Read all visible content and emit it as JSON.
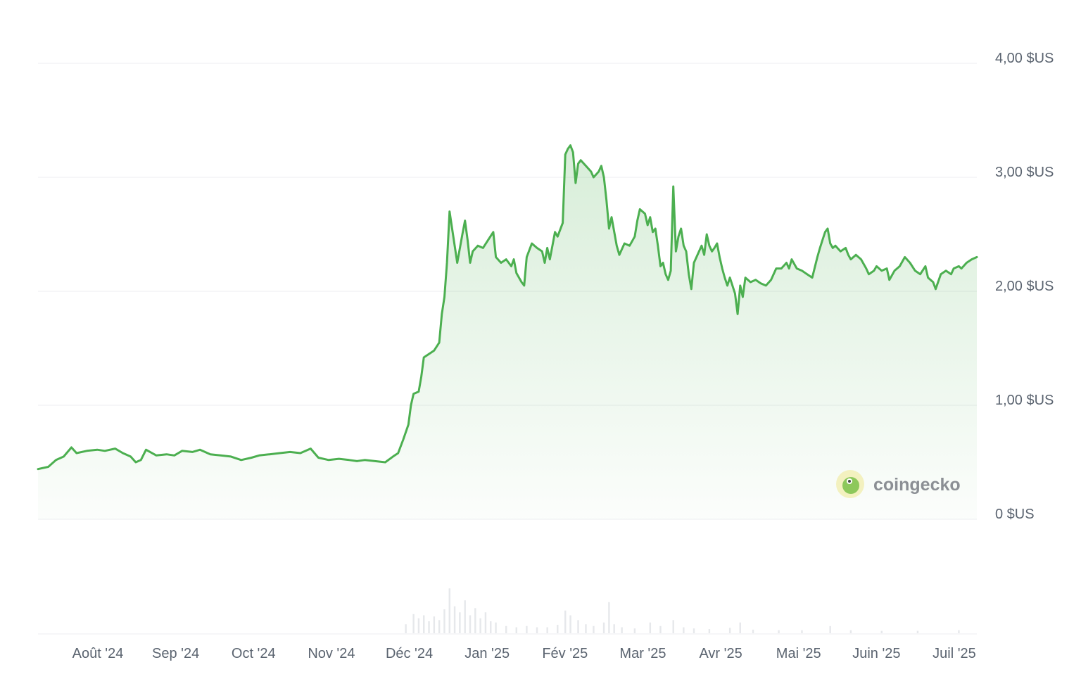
{
  "chart_data": {
    "type": "area",
    "title": "",
    "xlabel": "",
    "ylabel": "",
    "x_ticks": [
      "Août '24",
      "Sep '24",
      "Oct '24",
      "Nov '24",
      "Déc '24",
      "Jan '25",
      "Fév '25",
      "Mar '25",
      "Avr '25",
      "Mai '25",
      "Juin '25",
      "Juil '25"
    ],
    "y_ticks": [
      {
        "value": 4,
        "label": "4,00 $US"
      },
      {
        "value": 3,
        "label": "3,00 $US"
      },
      {
        "value": 2,
        "label": "2,00 $US"
      },
      {
        "value": 1,
        "label": "1,00 $US"
      },
      {
        "value": 0,
        "label": "0 $US"
      }
    ],
    "ylim": [
      0,
      4
    ],
    "xlim": [
      "2024-07-08",
      "2025-07-08"
    ],
    "grid": true,
    "line_color": "#4caf50",
    "fill_color": "#4caf50",
    "series": [
      {
        "values": [
          [
            "2024-07-08",
            0.44
          ],
          [
            "2024-07-12",
            0.46
          ],
          [
            "2024-07-15",
            0.52
          ],
          [
            "2024-07-18",
            0.55
          ],
          [
            "2024-07-21",
            0.63
          ],
          [
            "2024-07-23",
            0.58
          ],
          [
            "2024-07-27",
            0.6
          ],
          [
            "2024-07-31",
            0.61
          ],
          [
            "2024-08-03",
            0.6
          ],
          [
            "2024-08-07",
            0.62
          ],
          [
            "2024-08-10",
            0.58
          ],
          [
            "2024-08-13",
            0.55
          ],
          [
            "2024-08-15",
            0.5
          ],
          [
            "2024-08-17",
            0.52
          ],
          [
            "2024-08-19",
            0.61
          ],
          [
            "2024-08-23",
            0.56
          ],
          [
            "2024-08-27",
            0.57
          ],
          [
            "2024-08-30",
            0.56
          ],
          [
            "2024-09-02",
            0.6
          ],
          [
            "2024-09-06",
            0.59
          ],
          [
            "2024-09-09",
            0.61
          ],
          [
            "2024-09-13",
            0.57
          ],
          [
            "2024-09-17",
            0.56
          ],
          [
            "2024-09-21",
            0.55
          ],
          [
            "2024-09-25",
            0.52
          ],
          [
            "2024-09-29",
            0.54
          ],
          [
            "2024-10-02",
            0.56
          ],
          [
            "2024-10-06",
            0.57
          ],
          [
            "2024-10-10",
            0.58
          ],
          [
            "2024-10-14",
            0.59
          ],
          [
            "2024-10-18",
            0.58
          ],
          [
            "2024-10-22",
            0.62
          ],
          [
            "2024-10-25",
            0.54
          ],
          [
            "2024-10-29",
            0.52
          ],
          [
            "2024-11-02",
            0.53
          ],
          [
            "2024-11-06",
            0.52
          ],
          [
            "2024-11-09",
            0.51
          ],
          [
            "2024-11-12",
            0.52
          ],
          [
            "2024-11-16",
            0.51
          ],
          [
            "2024-11-20",
            0.5
          ],
          [
            "2024-11-23",
            0.55
          ],
          [
            "2024-11-25",
            0.58
          ],
          [
            "2024-11-27",
            0.7
          ],
          [
            "2024-11-29",
            0.83
          ],
          [
            "2024-11-30",
            1.0
          ],
          [
            "2024-12-01",
            1.1
          ],
          [
            "2024-12-03",
            1.12
          ],
          [
            "2024-12-04",
            1.25
          ],
          [
            "2024-12-05",
            1.42
          ],
          [
            "2024-12-07",
            1.45
          ],
          [
            "2024-12-09",
            1.48
          ],
          [
            "2024-12-11",
            1.55
          ],
          [
            "2024-12-12",
            1.8
          ],
          [
            "2024-12-13",
            1.95
          ],
          [
            "2024-12-14",
            2.25
          ],
          [
            "2024-12-15",
            2.7
          ],
          [
            "2024-12-16",
            2.55
          ],
          [
            "2024-12-18",
            2.25
          ],
          [
            "2024-12-20",
            2.5
          ],
          [
            "2024-12-21",
            2.62
          ],
          [
            "2024-12-22",
            2.45
          ],
          [
            "2024-12-23",
            2.25
          ],
          [
            "2024-12-24",
            2.35
          ],
          [
            "2024-12-26",
            2.4
          ],
          [
            "2024-12-28",
            2.38
          ],
          [
            "2024-12-30",
            2.45
          ],
          [
            "2025-01-01",
            2.52
          ],
          [
            "2025-01-02",
            2.3
          ],
          [
            "2025-01-04",
            2.25
          ],
          [
            "2025-01-06",
            2.28
          ],
          [
            "2025-01-08",
            2.22
          ],
          [
            "2025-01-09",
            2.28
          ],
          [
            "2025-01-10",
            2.16
          ],
          [
            "2025-01-12",
            2.08
          ],
          [
            "2025-01-13",
            2.05
          ],
          [
            "2025-01-14",
            2.3
          ],
          [
            "2025-01-16",
            2.42
          ],
          [
            "2025-01-18",
            2.38
          ],
          [
            "2025-01-20",
            2.35
          ],
          [
            "2025-01-21",
            2.25
          ],
          [
            "2025-01-22",
            2.38
          ],
          [
            "2025-01-23",
            2.28
          ],
          [
            "2025-01-25",
            2.52
          ],
          [
            "2025-01-26",
            2.48
          ],
          [
            "2025-01-28",
            2.6
          ],
          [
            "2025-01-29",
            3.2
          ],
          [
            "2025-01-30",
            3.25
          ],
          [
            "2025-01-31",
            3.28
          ],
          [
            "2025-02-01",
            3.22
          ],
          [
            "2025-02-02",
            2.95
          ],
          [
            "2025-02-03",
            3.12
          ],
          [
            "2025-02-04",
            3.15
          ],
          [
            "2025-02-06",
            3.1
          ],
          [
            "2025-02-08",
            3.05
          ],
          [
            "2025-02-09",
            3.0
          ],
          [
            "2025-02-11",
            3.05
          ],
          [
            "2025-02-12",
            3.1
          ],
          [
            "2025-02-13",
            3.0
          ],
          [
            "2025-02-14",
            2.8
          ],
          [
            "2025-02-15",
            2.55
          ],
          [
            "2025-02-16",
            2.65
          ],
          [
            "2025-02-18",
            2.4
          ],
          [
            "2025-02-19",
            2.32
          ],
          [
            "2025-02-21",
            2.42
          ],
          [
            "2025-02-23",
            2.4
          ],
          [
            "2025-02-25",
            2.48
          ],
          [
            "2025-02-26",
            2.62
          ],
          [
            "2025-02-27",
            2.72
          ],
          [
            "2025-02-28",
            2.7
          ],
          [
            "2025-03-01",
            2.68
          ],
          [
            "2025-03-02",
            2.58
          ],
          [
            "2025-03-03",
            2.65
          ],
          [
            "2025-03-04",
            2.52
          ],
          [
            "2025-03-05",
            2.55
          ],
          [
            "2025-03-06",
            2.4
          ],
          [
            "2025-03-07",
            2.22
          ],
          [
            "2025-03-08",
            2.25
          ],
          [
            "2025-03-09",
            2.15
          ],
          [
            "2025-03-10",
            2.1
          ],
          [
            "2025-03-11",
            2.18
          ],
          [
            "2025-03-12",
            2.92
          ],
          [
            "2025-03-13",
            2.35
          ],
          [
            "2025-03-14",
            2.48
          ],
          [
            "2025-03-15",
            2.55
          ],
          [
            "2025-03-16",
            2.4
          ],
          [
            "2025-03-17",
            2.35
          ],
          [
            "2025-03-18",
            2.15
          ],
          [
            "2025-03-19",
            2.02
          ],
          [
            "2025-03-20",
            2.25
          ],
          [
            "2025-03-22",
            2.35
          ],
          [
            "2025-03-23",
            2.4
          ],
          [
            "2025-03-24",
            2.32
          ],
          [
            "2025-03-25",
            2.5
          ],
          [
            "2025-03-26",
            2.4
          ],
          [
            "2025-03-27",
            2.35
          ],
          [
            "2025-03-28",
            2.38
          ],
          [
            "2025-03-29",
            2.42
          ],
          [
            "2025-03-30",
            2.3
          ],
          [
            "2025-03-31",
            2.2
          ],
          [
            "2025-04-01",
            2.12
          ],
          [
            "2025-04-02",
            2.05
          ],
          [
            "2025-04-03",
            2.12
          ],
          [
            "2025-04-05",
            1.98
          ],
          [
            "2025-04-06",
            1.8
          ],
          [
            "2025-04-07",
            2.05
          ],
          [
            "2025-04-08",
            1.95
          ],
          [
            "2025-04-09",
            2.12
          ],
          [
            "2025-04-11",
            2.08
          ],
          [
            "2025-04-13",
            2.1
          ],
          [
            "2025-04-15",
            2.07
          ],
          [
            "2025-04-17",
            2.05
          ],
          [
            "2025-04-19",
            2.1
          ],
          [
            "2025-04-21",
            2.2
          ],
          [
            "2025-04-23",
            2.2
          ],
          [
            "2025-04-25",
            2.25
          ],
          [
            "2025-04-26",
            2.2
          ],
          [
            "2025-04-27",
            2.28
          ],
          [
            "2025-04-29",
            2.2
          ],
          [
            "2025-05-01",
            2.18
          ],
          [
            "2025-05-03",
            2.15
          ],
          [
            "2025-05-05",
            2.12
          ],
          [
            "2025-05-07",
            2.3
          ],
          [
            "2025-05-08",
            2.38
          ],
          [
            "2025-05-09",
            2.45
          ],
          [
            "2025-05-10",
            2.52
          ],
          [
            "2025-05-11",
            2.55
          ],
          [
            "2025-05-12",
            2.42
          ],
          [
            "2025-05-13",
            2.38
          ],
          [
            "2025-05-14",
            2.4
          ],
          [
            "2025-05-16",
            2.35
          ],
          [
            "2025-05-18",
            2.38
          ],
          [
            "2025-05-19",
            2.32
          ],
          [
            "2025-05-20",
            2.28
          ],
          [
            "2025-05-22",
            2.32
          ],
          [
            "2025-05-24",
            2.28
          ],
          [
            "2025-05-26",
            2.2
          ],
          [
            "2025-05-27",
            2.15
          ],
          [
            "2025-05-29",
            2.18
          ],
          [
            "2025-05-30",
            2.22
          ],
          [
            "2025-06-01",
            2.18
          ],
          [
            "2025-06-03",
            2.2
          ],
          [
            "2025-06-04",
            2.1
          ],
          [
            "2025-06-06",
            2.18
          ],
          [
            "2025-06-08",
            2.22
          ],
          [
            "2025-06-10",
            2.3
          ],
          [
            "2025-06-12",
            2.25
          ],
          [
            "2025-06-14",
            2.18
          ],
          [
            "2025-06-16",
            2.15
          ],
          [
            "2025-06-18",
            2.22
          ],
          [
            "2025-06-19",
            2.12
          ],
          [
            "2025-06-21",
            2.08
          ],
          [
            "2025-06-22",
            2.02
          ],
          [
            "2025-06-24",
            2.15
          ],
          [
            "2025-06-26",
            2.18
          ],
          [
            "2025-06-28",
            2.15
          ],
          [
            "2025-06-29",
            2.2
          ],
          [
            "2025-07-01",
            2.22
          ],
          [
            "2025-07-02",
            2.2
          ],
          [
            "2025-07-04",
            2.25
          ],
          [
            "2025-07-06",
            2.28
          ],
          [
            "2025-07-08",
            2.3
          ]
        ]
      }
    ],
    "volume_bars": {
      "color": "#e6e8eb",
      "note": "relative trading volume shown as faint bars beneath the price area",
      "values": [
        [
          "2024-11-28",
          0.15
        ],
        [
          "2024-12-01",
          0.32
        ],
        [
          "2024-12-03",
          0.25
        ],
        [
          "2024-12-05",
          0.3
        ],
        [
          "2024-12-07",
          0.2
        ],
        [
          "2024-12-09",
          0.28
        ],
        [
          "2024-12-11",
          0.22
        ],
        [
          "2024-12-13",
          0.4
        ],
        [
          "2024-12-15",
          0.75
        ],
        [
          "2024-12-17",
          0.45
        ],
        [
          "2024-12-19",
          0.35
        ],
        [
          "2024-12-21",
          0.55
        ],
        [
          "2024-12-23",
          0.3
        ],
        [
          "2024-12-25",
          0.42
        ],
        [
          "2024-12-27",
          0.25
        ],
        [
          "2024-12-29",
          0.35
        ],
        [
          "2024-12-31",
          0.2
        ],
        [
          "2025-01-02",
          0.18
        ],
        [
          "2025-01-06",
          0.12
        ],
        [
          "2025-01-10",
          0.1
        ],
        [
          "2025-01-14",
          0.12
        ],
        [
          "2025-01-18",
          0.1
        ],
        [
          "2025-01-22",
          0.1
        ],
        [
          "2025-01-26",
          0.14
        ],
        [
          "2025-01-29",
          0.38
        ],
        [
          "2025-01-31",
          0.3
        ],
        [
          "2025-02-03",
          0.22
        ],
        [
          "2025-02-06",
          0.15
        ],
        [
          "2025-02-09",
          0.12
        ],
        [
          "2025-02-13",
          0.18
        ],
        [
          "2025-02-15",
          0.52
        ],
        [
          "2025-02-17",
          0.15
        ],
        [
          "2025-02-20",
          0.1
        ],
        [
          "2025-02-25",
          0.08
        ],
        [
          "2025-03-03",
          0.18
        ],
        [
          "2025-03-07",
          0.12
        ],
        [
          "2025-03-12",
          0.22
        ],
        [
          "2025-03-16",
          0.1
        ],
        [
          "2025-03-20",
          0.08
        ],
        [
          "2025-03-26",
          0.07
        ],
        [
          "2025-04-03",
          0.09
        ],
        [
          "2025-04-07",
          0.18
        ],
        [
          "2025-04-12",
          0.06
        ],
        [
          "2025-04-22",
          0.05
        ],
        [
          "2025-05-01",
          0.05
        ],
        [
          "2025-05-12",
          0.12
        ],
        [
          "2025-05-20",
          0.05
        ],
        [
          "2025-06-01",
          0.04
        ],
        [
          "2025-06-15",
          0.04
        ],
        [
          "2025-07-01",
          0.05
        ]
      ]
    }
  },
  "watermark": {
    "text": "coingecko",
    "icon": "coingecko-logo-icon"
  }
}
